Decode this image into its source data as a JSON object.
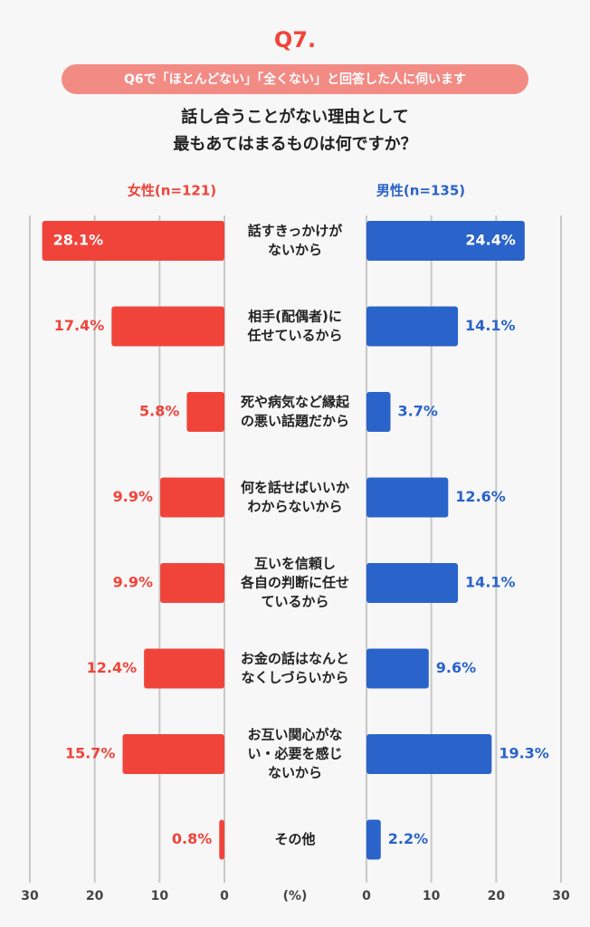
{
  "chart_data": {
    "type": "bar",
    "title": "Q7.",
    "subtitle": "Q6で「ほとんどない」「全くない」と回答した人に伺います",
    "question": [
      "話し合うことがない理由として",
      "最もあてはまるものは何ですか？"
    ],
    "categories": [
      [
        "話すきっかけが",
        "ないから"
      ],
      [
        "相手(配偶者)に",
        "任せているから"
      ],
      [
        "死や病気など縁起",
        "の悪い話題だから"
      ],
      [
        "何を話せばいいか",
        "わからないから"
      ],
      [
        "互いを信頼し",
        "各自の判断に任せ",
        "ているから"
      ],
      [
        "お金の話はなんと",
        "なくしづらいから"
      ],
      [
        "お互い関心がな",
        "い・必要を感じ",
        "ないから"
      ],
      [
        "その他"
      ]
    ],
    "series": [
      {
        "name": "女性(n=121)",
        "color": "#f0443a",
        "values": [
          28.1,
          17.4,
          5.8,
          9.9,
          9.9,
          12.4,
          15.7,
          0.8
        ],
        "value_labels": [
          "28.1%",
          "17.4%",
          "5.8%",
          "9.9%",
          "9.9%",
          "12.4%",
          "15.7%",
          "0.8%"
        ]
      },
      {
        "name": "男性(n=135)",
        "color": "#2a63c9",
        "values": [
          24.4,
          14.1,
          3.7,
          12.6,
          14.1,
          9.6,
          19.3,
          2.2
        ],
        "value_labels": [
          "24.4%",
          "14.1%",
          "3.7%",
          "12.6%",
          "14.1%",
          "9.6%",
          "19.3%",
          "2.2%"
        ]
      }
    ],
    "xlim": [
      0,
      30
    ],
    "xticks": [
      0,
      10,
      20,
      30
    ],
    "x_label": "(%)",
    "grid": true
  }
}
